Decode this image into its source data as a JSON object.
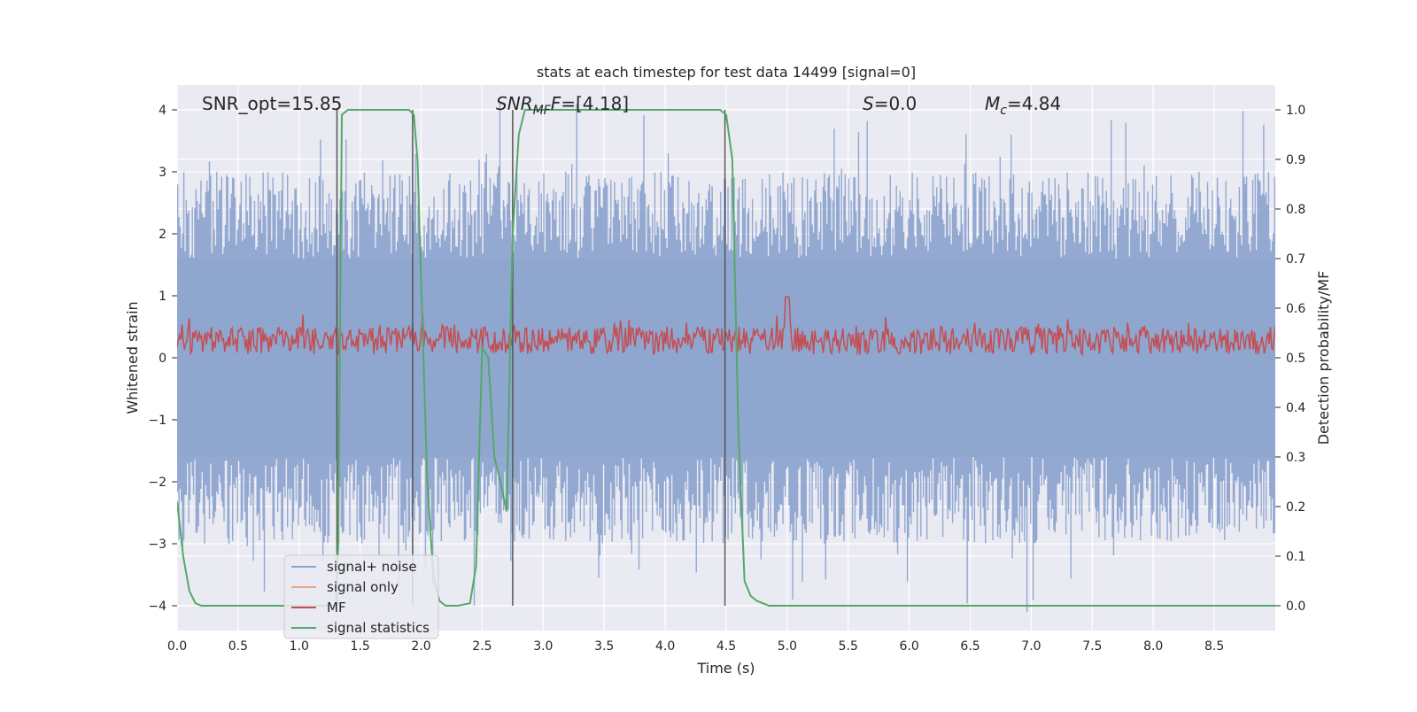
{
  "chart_data": {
    "type": "line",
    "title": "stats at each timestep for test data 14499 [signal=0]",
    "xlabel": "Time (s)",
    "ylabel": "Whitened strain",
    "y2label": "Detection probability/MF",
    "xlim": [
      0.0,
      9.0
    ],
    "ylim": [
      -4.4,
      4.4
    ],
    "y2lim": [
      -0.05,
      1.05
    ],
    "xticks": [
      "0.0",
      "0.5",
      "1.0",
      "1.5",
      "2.0",
      "2.5",
      "3.0",
      "3.5",
      "4.0",
      "4.5",
      "5.0",
      "5.5",
      "6.0",
      "6.5",
      "7.0",
      "7.5",
      "8.0",
      "8.5"
    ],
    "yticks": [
      "−4",
      "−3",
      "−2",
      "−1",
      "0",
      "1",
      "2",
      "3",
      "4"
    ],
    "y2ticks": [
      "0.0",
      "0.1",
      "0.2",
      "0.3",
      "0.4",
      "0.5",
      "0.6",
      "0.7",
      "0.8",
      "0.9",
      "1.0"
    ],
    "grid": true,
    "legend_position": "lower-left",
    "legend": [
      {
        "label": "signal+ noise",
        "color": "#8ea5cf"
      },
      {
        "label": "signal only",
        "color": "#e8a888"
      },
      {
        "label": "MF",
        "color": "#c44e52"
      },
      {
        "label": "signal statistics",
        "color": "#55a868"
      }
    ],
    "annotations": {
      "snr_opt": "SNR_opt=15.85",
      "snr_mf_main": "SNR",
      "snr_mf_sub": "MF",
      "snr_mf_value": "=[4.18]",
      "s_symbol": "S",
      "s_value": "=0.0",
      "mc_symbol": "M",
      "mc_sub": "c",
      "mc_value": "=4.84"
    },
    "vertical_lines_s": [
      1.31,
      1.93,
      2.75,
      4.49
    ],
    "series": [
      {
        "name": "signal+ noise",
        "color": "#8ea5cf",
        "description": "noisy whitened strain, approx. within ±2 with spikes to ±4",
        "seed": 14499,
        "samples": 900,
        "amplitude": 1.0
      },
      {
        "name": "MF",
        "color": "#c44e52",
        "description": "matched filter output, roughly 0.0–0.7 with a peak near 1.0 at t≈5.0",
        "seed": 77,
        "samples": 900
      },
      {
        "name": "signal statistics",
        "color": "#55a868",
        "x": [
          0.0,
          0.05,
          0.1,
          0.15,
          0.2,
          0.3,
          0.5,
          1.0,
          1.3,
          1.32,
          1.35,
          1.4,
          1.45,
          1.5,
          1.9,
          1.94,
          1.97,
          2.0,
          2.05,
          2.1,
          2.15,
          2.2,
          2.3,
          2.4,
          2.45,
          2.5,
          2.55,
          2.6,
          2.65,
          2.7,
          2.75,
          2.8,
          2.85,
          2.9,
          4.45,
          4.5,
          4.55,
          4.6,
          4.65,
          4.7,
          4.75,
          4.8,
          4.85,
          4.9,
          5.0,
          6.0,
          7.0,
          8.0,
          9.0
        ],
        "values": [
          0.21,
          0.1,
          0.03,
          0.005,
          0.0,
          0.0,
          0.0,
          0.0,
          0.0,
          0.12,
          0.99,
          1.0,
          1.0,
          1.0,
          1.0,
          0.99,
          0.9,
          0.65,
          0.25,
          0.06,
          0.01,
          0.0,
          0.0,
          0.005,
          0.08,
          0.52,
          0.5,
          0.3,
          0.25,
          0.19,
          0.75,
          0.95,
          1.0,
          1.0,
          1.0,
          0.99,
          0.9,
          0.35,
          0.05,
          0.02,
          0.01,
          0.005,
          0.0,
          0.0,
          0.0,
          0.0,
          0.0,
          0.0,
          0.0
        ]
      }
    ]
  }
}
